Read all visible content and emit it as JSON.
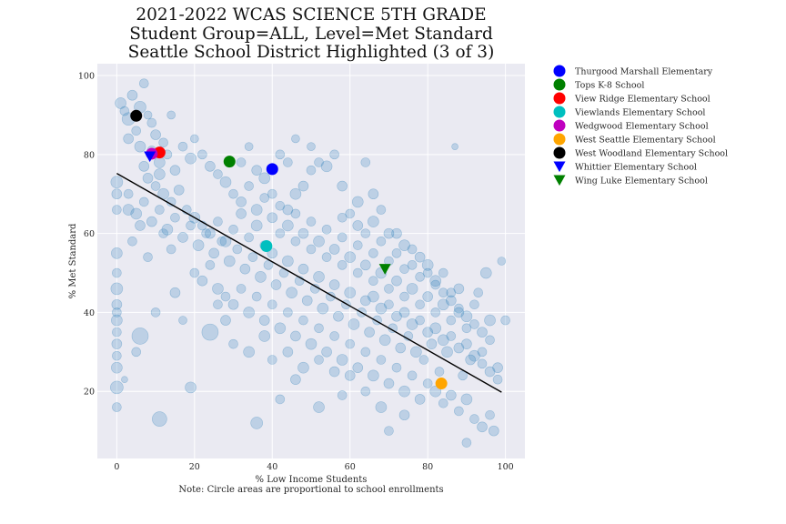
{
  "chart_data": {
    "type": "scatter",
    "title_lines": [
      "2021-2022 WCAS SCIENCE 5TH GRADE",
      "Student Group=ALL, Level=Met Standard",
      "Seattle School District Highlighted (3 of 3)"
    ],
    "xlabel": "% Low Income Students",
    "note": "Note: Circle areas are proportional to school enrollments",
    "ylabel": "% Met Standard",
    "xlim": [
      -5,
      105
    ],
    "ylim": [
      3,
      103
    ],
    "xticks": [
      0,
      20,
      40,
      60,
      80,
      100
    ],
    "yticks": [
      20,
      40,
      60,
      80,
      100
    ],
    "grid": true,
    "background_color": "#eaeaf2",
    "cloud_color": "#1f77b4",
    "trend_line": {
      "x": [
        0,
        99
      ],
      "y": [
        75.2,
        19.8
      ],
      "color": "#000000"
    },
    "background_points": [
      [
        1,
        93,
        1.2
      ],
      [
        2,
        91,
        1.0
      ],
      [
        3,
        89,
        1.4
      ],
      [
        4,
        95,
        1.1
      ],
      [
        5,
        86,
        1.0
      ],
      [
        6,
        92,
        1.3
      ],
      [
        7,
        98,
        1.0
      ],
      [
        8,
        90,
        0.9
      ],
      [
        3,
        84,
        1.1
      ],
      [
        6,
        82,
        1.2
      ],
      [
        9,
        88,
        1.0
      ],
      [
        10,
        85,
        1.1
      ],
      [
        12,
        83,
        1.0
      ],
      [
        14,
        90,
        0.9
      ],
      [
        11,
        78,
        1.2
      ],
      [
        13,
        80,
        1.0
      ],
      [
        15,
        76,
        1.1
      ],
      [
        17,
        82,
        1.0
      ],
      [
        19,
        79,
        1.2
      ],
      [
        20,
        84,
        0.9
      ],
      [
        22,
        80,
        1.0
      ],
      [
        24,
        77,
        1.1
      ],
      [
        26,
        75,
        1.0
      ],
      [
        28,
        73,
        1.2
      ],
      [
        8,
        74,
        1.1
      ],
      [
        10,
        72,
        1.0
      ],
      [
        12,
        70,
        1.2
      ],
      [
        14,
        68,
        1.0
      ],
      [
        16,
        71,
        1.1
      ],
      [
        18,
        66,
        1.0
      ],
      [
        20,
        64,
        1.2
      ],
      [
        22,
        62,
        1.0
      ],
      [
        24,
        60,
        1.1
      ],
      [
        26,
        63,
        1.0
      ],
      [
        28,
        58,
        1.2
      ],
      [
        30,
        61,
        1.0
      ],
      [
        32,
        65,
        1.1
      ],
      [
        34,
        59,
        1.0
      ],
      [
        36,
        62,
        1.2
      ],
      [
        38,
        57,
        1.0
      ],
      [
        40,
        55,
        1.1
      ],
      [
        42,
        60,
        1.0
      ],
      [
        44,
        53,
        1.2
      ],
      [
        46,
        58,
        1.0
      ],
      [
        48,
        51,
        1.1
      ],
      [
        50,
        56,
        1.0
      ],
      [
        52,
        49,
        1.2
      ],
      [
        54,
        54,
        1.0
      ],
      [
        56,
        47,
        1.1
      ],
      [
        58,
        52,
        1.0
      ],
      [
        60,
        45,
        1.2
      ],
      [
        62,
        50,
        1.0
      ],
      [
        64,
        43,
        1.1
      ],
      [
        66,
        48,
        1.0
      ],
      [
        68,
        41,
        1.2
      ],
      [
        70,
        46,
        1.0
      ],
      [
        72,
        39,
        1.1
      ],
      [
        74,
        44,
        1.0
      ],
      [
        76,
        37,
        1.2
      ],
      [
        78,
        42,
        1.0
      ],
      [
        80,
        35,
        1.1
      ],
      [
        82,
        40,
        1.0
      ],
      [
        84,
        33,
        1.2
      ],
      [
        86,
        38,
        1.0
      ],
      [
        88,
        31,
        1.1
      ],
      [
        90,
        36,
        1.0
      ],
      [
        92,
        29,
        1.2
      ],
      [
        94,
        27,
        1.0
      ],
      [
        96,
        25,
        1.1
      ],
      [
        98,
        23,
        1.0
      ],
      [
        30,
        70,
        1.0
      ],
      [
        32,
        68,
        1.1
      ],
      [
        34,
        72,
        1.0
      ],
      [
        36,
        66,
        1.2
      ],
      [
        38,
        69,
        1.0
      ],
      [
        40,
        64,
        1.1
      ],
      [
        42,
        67,
        1.0
      ],
      [
        44,
        62,
        1.2
      ],
      [
        46,
        65,
        1.0
      ],
      [
        48,
        60,
        1.1
      ],
      [
        50,
        63,
        1.0
      ],
      [
        52,
        58,
        1.2
      ],
      [
        54,
        61,
        1.0
      ],
      [
        56,
        56,
        1.1
      ],
      [
        58,
        59,
        1.0
      ],
      [
        60,
        54,
        1.2
      ],
      [
        62,
        57,
        1.0
      ],
      [
        64,
        52,
        1.1
      ],
      [
        66,
        55,
        1.0
      ],
      [
        68,
        50,
        1.2
      ],
      [
        70,
        53,
        1.0
      ],
      [
        72,
        48,
        1.1
      ],
      [
        74,
        51,
        1.0
      ],
      [
        76,
        46,
        1.2
      ],
      [
        78,
        49,
        1.0
      ],
      [
        80,
        44,
        1.1
      ],
      [
        82,
        47,
        1.0
      ],
      [
        84,
        42,
        1.2
      ],
      [
        86,
        45,
        1.0
      ],
      [
        88,
        40,
        1.1
      ],
      [
        20,
        50,
        1.0
      ],
      [
        22,
        48,
        1.1
      ],
      [
        24,
        52,
        1.0
      ],
      [
        26,
        46,
        1.2
      ],
      [
        28,
        44,
        1.0
      ],
      [
        30,
        42,
        1.1
      ],
      [
        32,
        46,
        1.0
      ],
      [
        34,
        40,
        1.2
      ],
      [
        36,
        44,
        1.0
      ],
      [
        38,
        38,
        1.1
      ],
      [
        40,
        42,
        1.0
      ],
      [
        42,
        36,
        1.2
      ],
      [
        44,
        40,
        1.0
      ],
      [
        46,
        34,
        1.1
      ],
      [
        48,
        38,
        1.0
      ],
      [
        50,
        32,
        1.2
      ],
      [
        52,
        36,
        1.0
      ],
      [
        54,
        30,
        1.1
      ],
      [
        56,
        34,
        1.0
      ],
      [
        58,
        28,
        1.2
      ],
      [
        60,
        32,
        1.0
      ],
      [
        62,
        26,
        1.1
      ],
      [
        64,
        30,
        1.0
      ],
      [
        66,
        24,
        1.2
      ],
      [
        68,
        28,
        1.0
      ],
      [
        70,
        22,
        1.1
      ],
      [
        72,
        26,
        1.0
      ],
      [
        74,
        20,
        1.2
      ],
      [
        76,
        24,
        1.0
      ],
      [
        78,
        18,
        1.1
      ],
      [
        80,
        22,
        1.0
      ],
      [
        82,
        20,
        1.2
      ],
      [
        84,
        17,
        1.0
      ],
      [
        86,
        19,
        1.1
      ],
      [
        88,
        15,
        1.0
      ],
      [
        90,
        18,
        1.2
      ],
      [
        92,
        13,
        1.0
      ],
      [
        94,
        11,
        1.1
      ],
      [
        96,
        14,
        1.0
      ],
      [
        90,
        7,
        1.0
      ],
      [
        0,
        73,
        1.3
      ],
      [
        0,
        70,
        1.1
      ],
      [
        0,
        66,
        1.0
      ],
      [
        0,
        55,
        1.2
      ],
      [
        0,
        50,
        1.0
      ],
      [
        0,
        46,
        1.3
      ],
      [
        0,
        42,
        1.1
      ],
      [
        0,
        40,
        1.0
      ],
      [
        0,
        38,
        1.2
      ],
      [
        0,
        35,
        1.0
      ],
      [
        0,
        32,
        1.1
      ],
      [
        0,
        29,
        1.0
      ],
      [
        0,
        26,
        1.2
      ],
      [
        0,
        21,
        1.4
      ],
      [
        0,
        16,
        1.0
      ],
      [
        6,
        34,
        1.8
      ],
      [
        11,
        13,
        1.6
      ],
      [
        24,
        35,
        1.8
      ],
      [
        19,
        21,
        1.2
      ],
      [
        2,
        23,
        0.7
      ],
      [
        5,
        30,
        1.0
      ],
      [
        10,
        40,
        1.0
      ],
      [
        15,
        45,
        1.1
      ],
      [
        17,
        38,
        0.9
      ],
      [
        8,
        54,
        1.0
      ],
      [
        12,
        60,
        1.0
      ],
      [
        6,
        62,
        1.1
      ],
      [
        4,
        58,
        1.0
      ],
      [
        3,
        66,
        1.2
      ],
      [
        14,
        56,
        1.0
      ],
      [
        56,
        80,
        1.0
      ],
      [
        58,
        72,
        1.1
      ],
      [
        54,
        77,
        1.2
      ],
      [
        50,
        76,
        1.0
      ],
      [
        48,
        72,
        1.1
      ],
      [
        44,
        78,
        1.0
      ],
      [
        46,
        70,
        1.2
      ],
      [
        60,
        65,
        1.0
      ],
      [
        62,
        62,
        1.1
      ],
      [
        64,
        60,
        1.0
      ],
      [
        66,
        63,
        1.2
      ],
      [
        68,
        58,
        1.0
      ],
      [
        70,
        60,
        1.1
      ],
      [
        72,
        55,
        1.0
      ],
      [
        74,
        57,
        1.2
      ],
      [
        76,
        52,
        1.0
      ],
      [
        78,
        54,
        1.1
      ],
      [
        80,
        50,
        1.0
      ],
      [
        82,
        48,
        1.2
      ],
      [
        84,
        45,
        1.0
      ],
      [
        86,
        43,
        1.1
      ],
      [
        88,
        41,
        1.0
      ],
      [
        90,
        39,
        1.2
      ],
      [
        92,
        37,
        1.0
      ],
      [
        94,
        35,
        1.1
      ],
      [
        96,
        33,
        1.0
      ],
      [
        99,
        53,
        0.9
      ],
      [
        100,
        38,
        1.0
      ],
      [
        98,
        26,
        1.1
      ],
      [
        97,
        10,
        1.1
      ],
      [
        87,
        82,
        0.7
      ],
      [
        95,
        50,
        1.2
      ],
      [
        93,
        45,
        1.0
      ],
      [
        91,
        28,
        1.1
      ],
      [
        89,
        24,
        1.0
      ],
      [
        85,
        30,
        1.2
      ],
      [
        83,
        25,
        1.0
      ],
      [
        81,
        32,
        1.1
      ],
      [
        79,
        28,
        1.0
      ],
      [
        77,
        30,
        1.2
      ],
      [
        75,
        34,
        1.0
      ],
      [
        73,
        31,
        1.1
      ],
      [
        71,
        36,
        1.0
      ],
      [
        69,
        33,
        1.2
      ],
      [
        67,
        38,
        1.0
      ],
      [
        65,
        35,
        1.1
      ],
      [
        63,
        40,
        1.0
      ],
      [
        61,
        37,
        1.2
      ],
      [
        59,
        42,
        1.0
      ],
      [
        57,
        39,
        1.1
      ],
      [
        55,
        44,
        1.0
      ],
      [
        53,
        41,
        1.2
      ],
      [
        51,
        46,
        1.0
      ],
      [
        49,
        43,
        1.1
      ],
      [
        47,
        48,
        1.0
      ],
      [
        45,
        45,
        1.2
      ],
      [
        43,
        50,
        1.0
      ],
      [
        41,
        47,
        1.1
      ],
      [
        39,
        52,
        1.0
      ],
      [
        37,
        49,
        1.2
      ],
      [
        35,
        54,
        1.0
      ],
      [
        33,
        51,
        1.1
      ],
      [
        31,
        56,
        1.0
      ],
      [
        29,
        53,
        1.2
      ],
      [
        27,
        58,
        1.0
      ],
      [
        25,
        55,
        1.1
      ],
      [
        23,
        60,
        1.0
      ],
      [
        21,
        57,
        1.2
      ],
      [
        19,
        62,
        1.0
      ],
      [
        17,
        59,
        1.1
      ],
      [
        15,
        64,
        1.0
      ],
      [
        13,
        61,
        1.2
      ],
      [
        11,
        66,
        1.0
      ],
      [
        9,
        63,
        1.1
      ],
      [
        7,
        68,
        1.0
      ],
      [
        5,
        65,
        1.2
      ],
      [
        3,
        70,
        1.0
      ],
      [
        7,
        77,
        1.1
      ],
      [
        9,
        81,
        1.0
      ],
      [
        11,
        75,
        1.2
      ],
      [
        36,
        12,
        1.3
      ],
      [
        42,
        18,
        1.0
      ],
      [
        46,
        23,
        1.1
      ],
      [
        52,
        16,
        1.2
      ],
      [
        58,
        19,
        1.0
      ],
      [
        60,
        24,
        1.1
      ],
      [
        64,
        20,
        1.0
      ],
      [
        68,
        16,
        1.2
      ],
      [
        70,
        10,
        1.0
      ],
      [
        74,
        14,
        1.1
      ],
      [
        40,
        28,
        1.0
      ],
      [
        44,
        30,
        1.1
      ],
      [
        48,
        26,
        1.2
      ],
      [
        52,
        28,
        1.0
      ],
      [
        56,
        25,
        1.1
      ],
      [
        34,
        30,
        1.2
      ],
      [
        30,
        32,
        1.0
      ],
      [
        28,
        38,
        1.1
      ],
      [
        26,
        42,
        1.0
      ],
      [
        38,
        34,
        1.2
      ],
      [
        50,
        82,
        0.9
      ],
      [
        52,
        78,
        1.0
      ],
      [
        46,
        84,
        0.9
      ],
      [
        42,
        80,
        1.0
      ],
      [
        36,
        76,
        1.1
      ],
      [
        34,
        82,
        0.9
      ],
      [
        32,
        78,
        1.0
      ],
      [
        38,
        74,
        1.2
      ],
      [
        40,
        70,
        1.0
      ],
      [
        44,
        66,
        1.1
      ],
      [
        64,
        78,
        1.0
      ],
      [
        66,
        70,
        1.1
      ],
      [
        68,
        66,
        1.0
      ],
      [
        62,
        68,
        1.2
      ],
      [
        58,
        64,
        1.0
      ],
      [
        72,
        60,
        1.1
      ],
      [
        76,
        56,
        1.0
      ],
      [
        80,
        52,
        1.2
      ],
      [
        84,
        50,
        1.0
      ],
      [
        88,
        46,
        1.1
      ],
      [
        92,
        42,
        1.0
      ],
      [
        96,
        38,
        1.2
      ],
      [
        94,
        30,
        1.0
      ],
      [
        90,
        32,
        1.1
      ],
      [
        86,
        34,
        1.0
      ],
      [
        82,
        36,
        1.2
      ],
      [
        78,
        38,
        1.0
      ],
      [
        74,
        40,
        1.1
      ],
      [
        70,
        42,
        1.0
      ],
      [
        66,
        44,
        1.2
      ]
    ],
    "highlighted": [
      {
        "name": "Thurgood Marshall Elementary",
        "x": 40,
        "y": 76.3,
        "color": "#0000ff",
        "marker": "circle"
      },
      {
        "name": "Tops K-8 School",
        "x": 29,
        "y": 78.2,
        "color": "#008000",
        "marker": "circle"
      },
      {
        "name": "View Ridge Elementary School",
        "x": 11,
        "y": 80.5,
        "color": "#ff0000",
        "marker": "circle"
      },
      {
        "name": "Viewlands Elementary School",
        "x": 38.5,
        "y": 56.8,
        "color": "#00bfbf",
        "marker": "circle"
      },
      {
        "name": "Wedgwood Elementary School",
        "x": 9,
        "y": 80.2,
        "color": "#bf00bf",
        "marker": "circle"
      },
      {
        "name": "West Seattle Elementary School",
        "x": 83.5,
        "y": 22.0,
        "color": "#ffa500",
        "marker": "circle"
      },
      {
        "name": "West Woodland Elementary School",
        "x": 5,
        "y": 89.8,
        "color": "#000000",
        "marker": "circle"
      },
      {
        "name": "Whittier Elementary School",
        "x": 8.5,
        "y": 79.5,
        "color": "#0000ff",
        "marker": "triangle-down"
      },
      {
        "name": "Wing Luke Elementary School",
        "x": 69,
        "y": 51.0,
        "color": "#008000",
        "marker": "triangle-down"
      }
    ],
    "legend_position": "upper-right-outside"
  }
}
